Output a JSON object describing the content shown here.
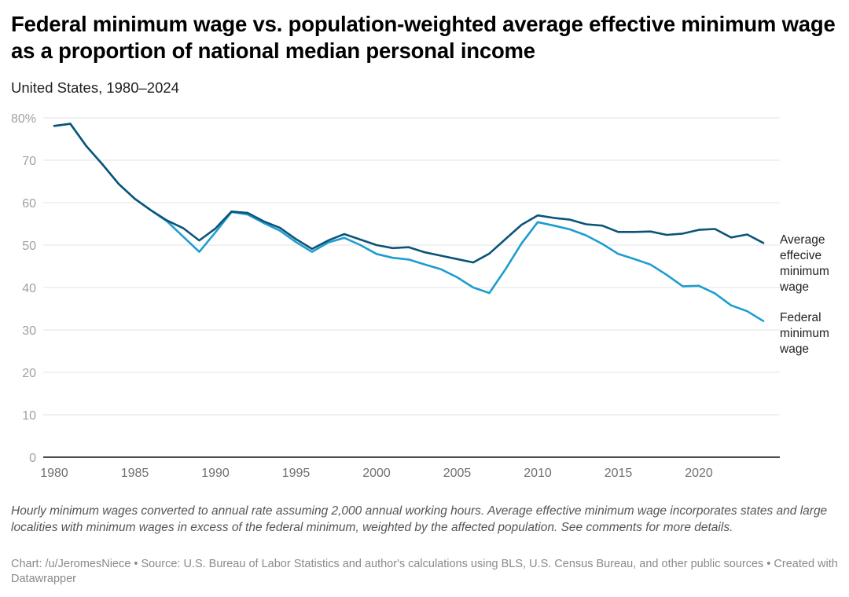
{
  "header": {
    "title": "Federal minimum wage vs. population-weighted average effective minimum wage as a proportion of national median personal income",
    "subtitle": "United States, 1980–2024"
  },
  "footer": {
    "notes": "Hourly minimum wages converted to annual rate assuming 2,000 annual working hours. Average effective minimum wage incorporates states and large localities with minimum wages in excess of the federal minimum, weighted by the affected population. See comments for more details.",
    "byline": "Chart: /u/JeromesNiece • Source: U.S. Bureau of Labor Statistics and author's calculations using BLS, U.S. Census Bureau, and other public sources • Created with Datawrapper"
  },
  "chart_data": {
    "type": "line",
    "title": "Federal minimum wage vs. population-weighted average effective minimum wage as a proportion of national median personal income",
    "subtitle": "United States, 1980–2024",
    "xlabel": "",
    "ylabel": "",
    "xlim": [
      1980,
      2024
    ],
    "ylim": [
      0,
      80
    ],
    "grid": true,
    "y_ticks": [
      0,
      10,
      20,
      30,
      40,
      50,
      60,
      70,
      80
    ],
    "y_tick_labels": [
      "0",
      "10",
      "20",
      "30",
      "40",
      "50",
      "60",
      "70",
      "80%"
    ],
    "x_ticks": [
      1980,
      1985,
      1990,
      1995,
      2000,
      2005,
      2010,
      2015,
      2020
    ],
    "x_tick_labels": [
      "1980",
      "1985",
      "1990",
      "1995",
      "2000",
      "2005",
      "2010",
      "2015",
      "2020"
    ],
    "legend": "direct labels at right end of lines",
    "x": [
      1980,
      1981,
      1982,
      1983,
      1984,
      1985,
      1986,
      1987,
      1988,
      1989,
      1990,
      1991,
      1992,
      1993,
      1994,
      1995,
      1996,
      1997,
      1998,
      1999,
      2000,
      2001,
      2002,
      2003,
      2004,
      2005,
      2006,
      2007,
      2008,
      2009,
      2010,
      2011,
      2012,
      2013,
      2014,
      2015,
      2016,
      2017,
      2018,
      2019,
      2020,
      2021,
      2022,
      2023,
      2024
    ],
    "series": [
      {
        "name": "Federal minimum wage",
        "label_lines": [
          "Federal",
          "minimum",
          "wage"
        ],
        "color": "#1d9dd0",
        "values": [
          78.1,
          78.6,
          73.3,
          69.0,
          64.4,
          60.9,
          58.2,
          55.6,
          52.0,
          48.4,
          53.0,
          57.8,
          57.2,
          55.2,
          53.4,
          50.7,
          48.4,
          50.6,
          51.7,
          50.0,
          47.9,
          47.0,
          46.6,
          45.4,
          44.3,
          42.4,
          40.0,
          38.7,
          44.3,
          50.4,
          55.4,
          54.6,
          53.7,
          52.3,
          50.3,
          47.9,
          46.7,
          45.4,
          43.0,
          40.3,
          40.4,
          38.6,
          35.8,
          34.4,
          32.1
        ]
      },
      {
        "name": "Average effecive minimum wage",
        "label_lines": [
          "Average",
          "effecive",
          "minimum",
          "wage"
        ],
        "color": "#0b5479",
        "values": [
          78.1,
          78.6,
          73.3,
          69.0,
          64.4,
          60.9,
          58.2,
          55.8,
          54.0,
          51.1,
          53.9,
          57.9,
          57.6,
          55.6,
          54.1,
          51.4,
          49.1,
          51.1,
          52.6,
          51.3,
          50.0,
          49.3,
          49.5,
          48.3,
          47.5,
          46.7,
          45.9,
          48.0,
          51.4,
          54.8,
          57.0,
          56.4,
          56.0,
          54.9,
          54.6,
          53.1,
          53.1,
          53.2,
          52.4,
          52.7,
          53.6,
          53.8,
          51.8,
          52.5,
          50.5
        ]
      }
    ]
  }
}
